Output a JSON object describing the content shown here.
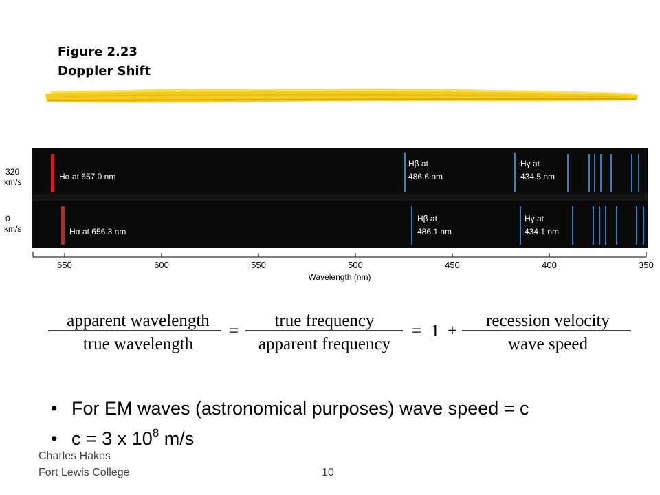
{
  "figure": {
    "title_line1": "Figure 2.23",
    "title_line2": "Doppler Shift"
  },
  "spectrum": {
    "row_labels": [
      {
        "speed": "320",
        "unit": "km/s"
      },
      {
        "speed": "0",
        "unit": "km/s"
      }
    ],
    "lines_moving": {
      "alpha_label": "Hα at 657.0 nm",
      "beta_label_1": "Hβ at",
      "beta_label_2": "486.6 nm",
      "gamma_label_1": "Hγ at",
      "gamma_label_2": "434.5 nm"
    },
    "lines_rest": {
      "alpha_label": "Hα at 656.3 nm",
      "beta_label_1": "Hβ at",
      "beta_label_2": "486.1 nm",
      "gamma_label_1": "Hγ at",
      "gamma_label_2": "434.1 nm"
    },
    "axis": {
      "ticks": [
        "650",
        "600",
        "550",
        "500",
        "450",
        "400",
        "350"
      ],
      "label": "Wavelength (nm)"
    },
    "colors": {
      "background": "#0a0a0a",
      "h_alpha": "#c8202a",
      "blue_lines": "#2f7fc4"
    }
  },
  "equation": {
    "frac1_num": "apparent wavelength",
    "frac1_den": "true wavelength",
    "eq1": "=",
    "frac2_num": "true frequency",
    "frac2_den": "apparent frequency",
    "eq2": "=",
    "one": "1",
    "plus": "+",
    "frac3_num": "recession velocity",
    "frac3_den": "wave speed"
  },
  "bullets": {
    "item1": "For EM waves (astronomical purposes) wave speed = c",
    "item2_base": "c = 3 x 10",
    "item2_exp": "8",
    "item2_unit": " m/s"
  },
  "footer": {
    "author": "Charles Hakes",
    "college": "Fort Lewis College",
    "page": "10"
  }
}
